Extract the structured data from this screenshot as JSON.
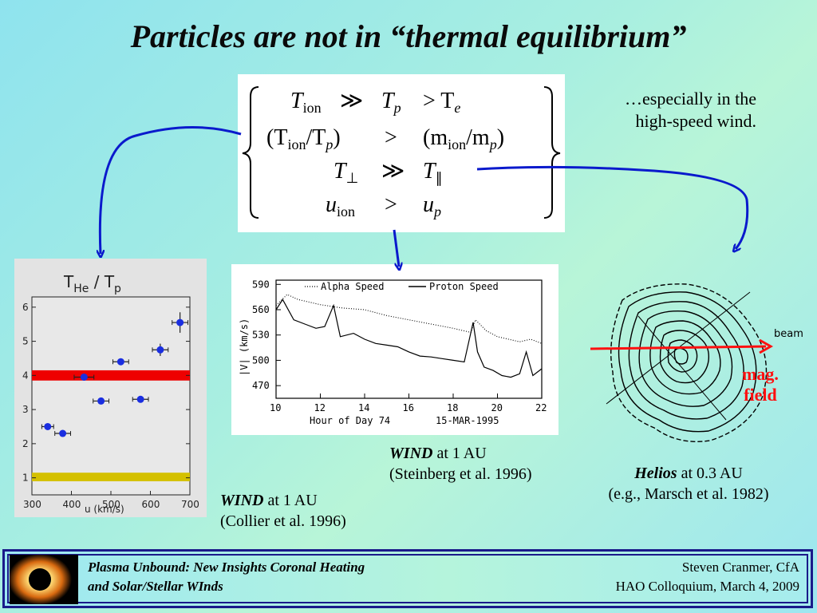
{
  "slide": {
    "title": "Particles are not in “thermal equilibrium”",
    "note_line1": "…especially in the",
    "note_line2": "high-speed wind."
  },
  "equations": [
    {
      "lhs": "T",
      "lhs_sub": "ion",
      "op": "≫",
      "rhs": "T",
      "rhs_sub": "p",
      "extra": "> T",
      "extra_sub": "e"
    },
    {
      "lhs": "(T",
      "lhs_sub": "ion",
      "lhs2": "/T",
      "lhs2_sub": "p",
      "lhs3": ")",
      "op": ">",
      "rhs": "(m",
      "rhs_sub": "ion",
      "rhs2": "/m",
      "rhs2_sub": "p",
      "rhs3": ")"
    },
    {
      "lhs": "T",
      "lhs_sub": "⊥",
      "op": "≫",
      "rhs": "T",
      "rhs_sub": "∥"
    },
    {
      "lhs": "u",
      "lhs_sub": "ion",
      "op": ">",
      "rhs": "u",
      "rhs_sub": "p"
    }
  ],
  "captions": {
    "collier_em": "WIND",
    "collier_rest": " at 1 AU",
    "collier_ref": "(Collier et al. 1996)",
    "steinberg_em": "WIND",
    "steinberg_rest": " at 1 AU",
    "steinberg_ref": "(Steinberg et al. 1996)",
    "helios_em": "Helios",
    "helios_rest": " at 0.3 AU",
    "helios_ref": "(e.g., Marsch et al. 1982)"
  },
  "helios_labels": {
    "beam": "beam",
    "mag1": "mag.",
    "mag2": "field"
  },
  "footer": {
    "left1": "Plasma Unbound:  New Insights Coronal Heating",
    "left2": "and Solar/Stellar WInds",
    "right1": "Steven Cranmer,  CfA",
    "right2": "HAO Colloquium, March 4, 2009"
  },
  "colors": {
    "accent_blue": "#0a1acc",
    "red_band": "#ee0000",
    "yellow_band": "#d4c000",
    "arrow": "#0a1acc",
    "mag_red": "#ff1010"
  },
  "chart_data": [
    {
      "type": "scatter",
      "title": "T_He / T_p",
      "xlabel": "u (km/s)",
      "ylabel": "",
      "xlim": [
        300,
        700
      ],
      "ylim": [
        0.5,
        6.3
      ],
      "xticks": [
        "300",
        "400",
        "500",
        "600",
        "700"
      ],
      "yticks": [
        "1",
        "2",
        "3",
        "4",
        "5",
        "6"
      ],
      "x": [
        340,
        378,
        432,
        475,
        525,
        575,
        625,
        675
      ],
      "y": [
        2.5,
        2.3,
        3.95,
        3.25,
        4.4,
        3.3,
        4.75,
        5.55
      ],
      "xerr": [
        15,
        20,
        25,
        20,
        20,
        20,
        20,
        20
      ],
      "yerr": [
        0.05,
        0.05,
        0.08,
        0.08,
        0.1,
        0.1,
        0.18,
        0.3
      ],
      "bands": [
        {
          "y0": 3.85,
          "y1": 4.15,
          "color": "#ee0000"
        },
        {
          "y0": 0.9,
          "y1": 1.15,
          "color": "#d4c000"
        }
      ]
    },
    {
      "type": "line",
      "xlabel": "Hour of Day 74",
      "ylabel": "|V| (km/s)",
      "date_label": "15-MAR-1995",
      "xlim": [
        10,
        22
      ],
      "ylim": [
        455,
        595
      ],
      "xticks": [
        "10",
        "12",
        "14",
        "16",
        "18",
        "20",
        "22"
      ],
      "yticks": [
        "590",
        "560",
        "530",
        "500",
        "470"
      ],
      "series": [
        {
          "name": "Alpha Speed",
          "style": "dotted",
          "x": [
            10,
            10.5,
            11,
            12,
            13,
            14,
            15,
            16,
            17,
            18,
            18.8,
            19,
            19.5,
            20,
            21,
            21.5,
            22
          ],
          "y": [
            565,
            578,
            572,
            566,
            562,
            560,
            553,
            548,
            543,
            538,
            533,
            548,
            535,
            528,
            522,
            525,
            520
          ]
        },
        {
          "name": "Proton Speed",
          "style": "solid",
          "x": [
            10,
            10.3,
            10.8,
            11.3,
            11.8,
            12.2,
            12.6,
            12.9,
            13.5,
            14,
            14.5,
            15,
            15.5,
            16,
            16.5,
            17,
            17.5,
            18,
            18.5,
            18.9,
            19.1,
            19.4,
            19.8,
            20.2,
            20.6,
            21,
            21.3,
            21.6,
            22
          ],
          "y": [
            560,
            572,
            548,
            543,
            538,
            540,
            565,
            528,
            532,
            525,
            520,
            518,
            516,
            510,
            505,
            504,
            502,
            500,
            498,
            545,
            510,
            492,
            488,
            482,
            480,
            484,
            510,
            482,
            490
          ]
        }
      ]
    }
  ]
}
